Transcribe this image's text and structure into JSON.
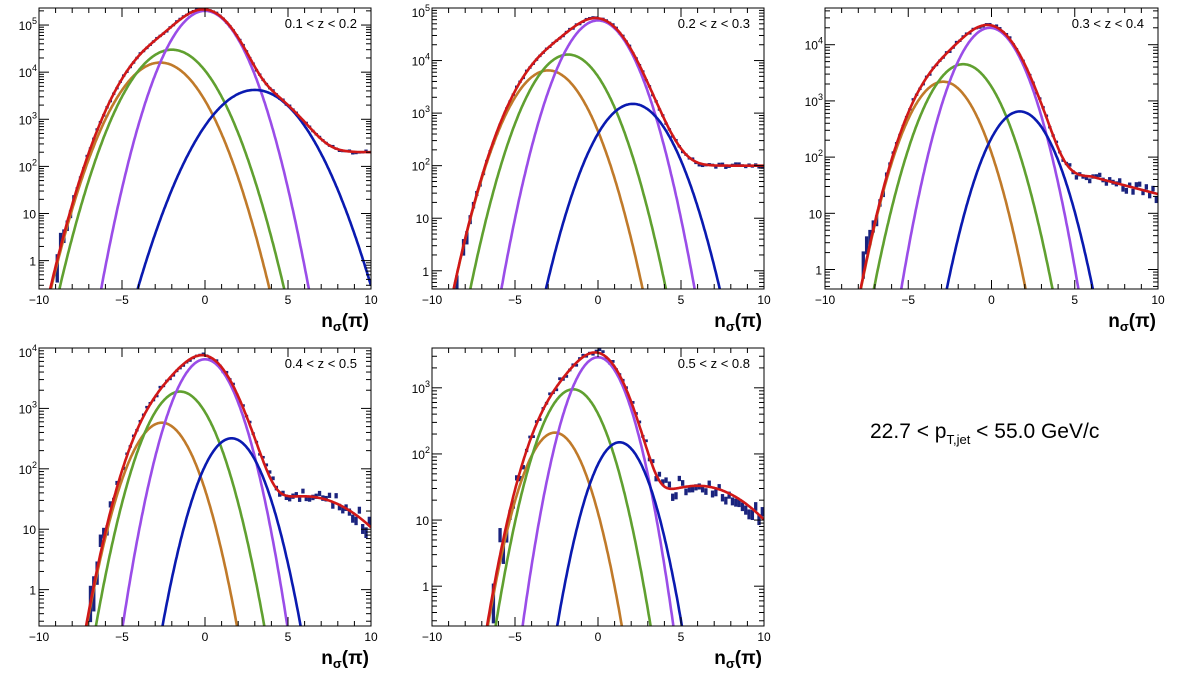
{
  "chart_data": [
    {
      "type": "line",
      "label": "0.1 < z < 0.2",
      "xlabel_main": "n",
      "xlabel_sub": "σ",
      "xlabel_tail": "(π)",
      "xlim": [
        -10,
        10
      ],
      "ylim": [
        0.25,
        230000
      ],
      "yscale": "log",
      "xticks": [
        -10,
        -5,
        0,
        5,
        10
      ],
      "yticks": [
        {
          "base": "1",
          "exp": "",
          "value": 1
        },
        {
          "base": "10",
          "exp": "",
          "value": 10
        },
        {
          "base": "10",
          "exp": "2",
          "value": 100
        },
        {
          "base": "10",
          "exp": "3",
          "value": 1000
        },
        {
          "base": "10",
          "exp": "4",
          "value": 10000
        },
        {
          "base": "10",
          "exp": "5",
          "value": 100000
        }
      ],
      "series": [
        {
          "color": "#c07a2a",
          "peak": 16000,
          "mu": -2.7,
          "sigma": 1.4
        },
        {
          "color": "#60a030",
          "peak": 30000,
          "mu": -2.0,
          "sigma": 1.4
        },
        {
          "color": "#9a4de8",
          "peak": 200000,
          "mu": 0.0,
          "sigma": 1.2
        },
        {
          "color": "#0a1ab0",
          "peak": 4200,
          "mu": 3.0,
          "sigma": 1.6
        }
      ],
      "fit_color": "#d01818",
      "data_color": "#1a237e",
      "tail": {
        "level": 200,
        "start": 5.5
      },
      "data_noise": 0.14,
      "data_cut": 3
    },
    {
      "type": "line",
      "label": "0.2 < z < 0.3",
      "xlabel_main": "n",
      "xlabel_sub": "σ",
      "xlabel_tail": "(π)",
      "xlim": [
        -10,
        10
      ],
      "ylim": [
        0.45,
        100000
      ],
      "yscale": "log",
      "xticks": [
        -10,
        -5,
        0,
        5,
        10
      ],
      "yticks": [
        {
          "base": "1",
          "exp": "",
          "value": 1
        },
        {
          "base": "10",
          "exp": "",
          "value": 10
        },
        {
          "base": "10",
          "exp": "2",
          "value": 100
        },
        {
          "base": "10",
          "exp": "3",
          "value": 1000
        },
        {
          "base": "10",
          "exp": "4",
          "value": 10000
        },
        {
          "base": "10",
          "exp": "5",
          "value": 100000
        }
      ],
      "series": [
        {
          "color": "#c07a2a",
          "peak": 6500,
          "mu": -3.0,
          "sigma": 1.3
        },
        {
          "color": "#60a030",
          "peak": 13000,
          "mu": -1.8,
          "sigma": 1.3
        },
        {
          "color": "#9a4de8",
          "peak": 58000,
          "mu": 0.0,
          "sigma": 1.2
        },
        {
          "color": "#0a1ab0",
          "peak": 1500,
          "mu": 2.1,
          "sigma": 1.3
        }
      ],
      "fit_color": "#d01818",
      "data_color": "#1a237e",
      "tail": {
        "level": 100,
        "start": 4.5
      },
      "data_noise": 0.16,
      "data_cut": 3
    },
    {
      "type": "line",
      "label": "0.3 < z < 0.4",
      "xlabel_main": "n",
      "xlabel_sub": "σ",
      "xlabel_tail": "(π)",
      "xlim": [
        -10,
        10
      ],
      "ylim": [
        0.45,
        45000
      ],
      "yscale": "log",
      "xticks": [
        -10,
        -5,
        0,
        5,
        10
      ],
      "yticks": [
        {
          "base": "1",
          "exp": "",
          "value": 1
        },
        {
          "base": "10",
          "exp": "",
          "value": 10
        },
        {
          "base": "10",
          "exp": "2",
          "value": 100
        },
        {
          "base": "10",
          "exp": "3",
          "value": 1000
        },
        {
          "base": "10",
          "exp": "4",
          "value": 10000
        }
      ],
      "series": [
        {
          "color": "#c07a2a",
          "peak": 2200,
          "mu": -2.9,
          "sigma": 1.2
        },
        {
          "color": "#60a030",
          "peak": 4500,
          "mu": -1.7,
          "sigma": 1.25
        },
        {
          "color": "#9a4de8",
          "peak": 20000,
          "mu": -0.1,
          "sigma": 1.15
        },
        {
          "color": "#0a1ab0",
          "peak": 650,
          "mu": 1.7,
          "sigma": 1.15
        }
      ],
      "fit_color": "#d01818",
      "data_color": "#1a237e",
      "tail": {
        "level": 45,
        "start": 4.0,
        "end_level": 22
      },
      "data_noise": 0.22,
      "data_cut": 2
    },
    {
      "type": "line",
      "label": "0.4 < z < 0.5",
      "xlabel_main": "n",
      "xlabel_sub": "σ",
      "xlabel_tail": "(π)",
      "xlim": [
        -10,
        10
      ],
      "ylim": [
        0.25,
        10000
      ],
      "yscale": "log",
      "xticks": [
        -10,
        -5,
        0,
        5,
        10
      ],
      "yticks": [
        {
          "base": "1",
          "exp": "",
          "value": 1
        },
        {
          "base": "10",
          "exp": "",
          "value": 10
        },
        {
          "base": "10",
          "exp": "2",
          "value": 100
        },
        {
          "base": "10",
          "exp": "3",
          "value": 1000
        },
        {
          "base": "10",
          "exp": "4",
          "value": 10000
        }
      ],
      "series": [
        {
          "color": "#c07a2a",
          "peak": 580,
          "mu": -2.6,
          "sigma": 1.15
        },
        {
          "color": "#60a030",
          "peak": 1900,
          "mu": -1.5,
          "sigma": 1.2
        },
        {
          "color": "#9a4de8",
          "peak": 6500,
          "mu": 0.0,
          "sigma": 1.1
        },
        {
          "color": "#0a1ab0",
          "peak": 320,
          "mu": 1.6,
          "sigma": 1.1
        }
      ],
      "fit_color": "#d01818",
      "data_color": "#1a237e",
      "bump": {
        "level": 35,
        "mu": 6.0,
        "sigma": 2.6
      },
      "data_noise": 0.3,
      "data_cut": 2
    },
    {
      "type": "line",
      "label": "0.5 < z < 0.8",
      "xlabel_main": "n",
      "xlabel_sub": "σ",
      "xlabel_tail": "(π)",
      "xlim": [
        -10,
        10
      ],
      "ylim": [
        0.25,
        4000
      ],
      "yscale": "log",
      "xticks": [
        -10,
        -5,
        0,
        5,
        10
      ],
      "yticks": [
        {
          "base": "1",
          "exp": "",
          "value": 1
        },
        {
          "base": "10",
          "exp": "",
          "value": 10
        },
        {
          "base": "10",
          "exp": "2",
          "value": 100
        },
        {
          "base": "10",
          "exp": "3",
          "value": 1000
        }
      ],
      "series": [
        {
          "color": "#c07a2a",
          "peak": 210,
          "mu": -2.6,
          "sigma": 1.1
        },
        {
          "color": "#60a030",
          "peak": 950,
          "mu": -1.5,
          "sigma": 1.15
        },
        {
          "color": "#9a4de8",
          "peak": 2900,
          "mu": 0.0,
          "sigma": 1.05
        },
        {
          "color": "#0a1ab0",
          "peak": 150,
          "mu": 1.3,
          "sigma": 1.05
        }
      ],
      "fit_color": "#d01818",
      "data_color": "#1a237e",
      "bump": {
        "level": 33,
        "mu": 6.0,
        "sigma": 2.6
      },
      "data_noise": 0.35,
      "data_cut": 2
    }
  ],
  "pt_range": {
    "prefix": "22.7 < p",
    "sub": "T,jet",
    "suffix": " < 55.0 GeV/c"
  }
}
